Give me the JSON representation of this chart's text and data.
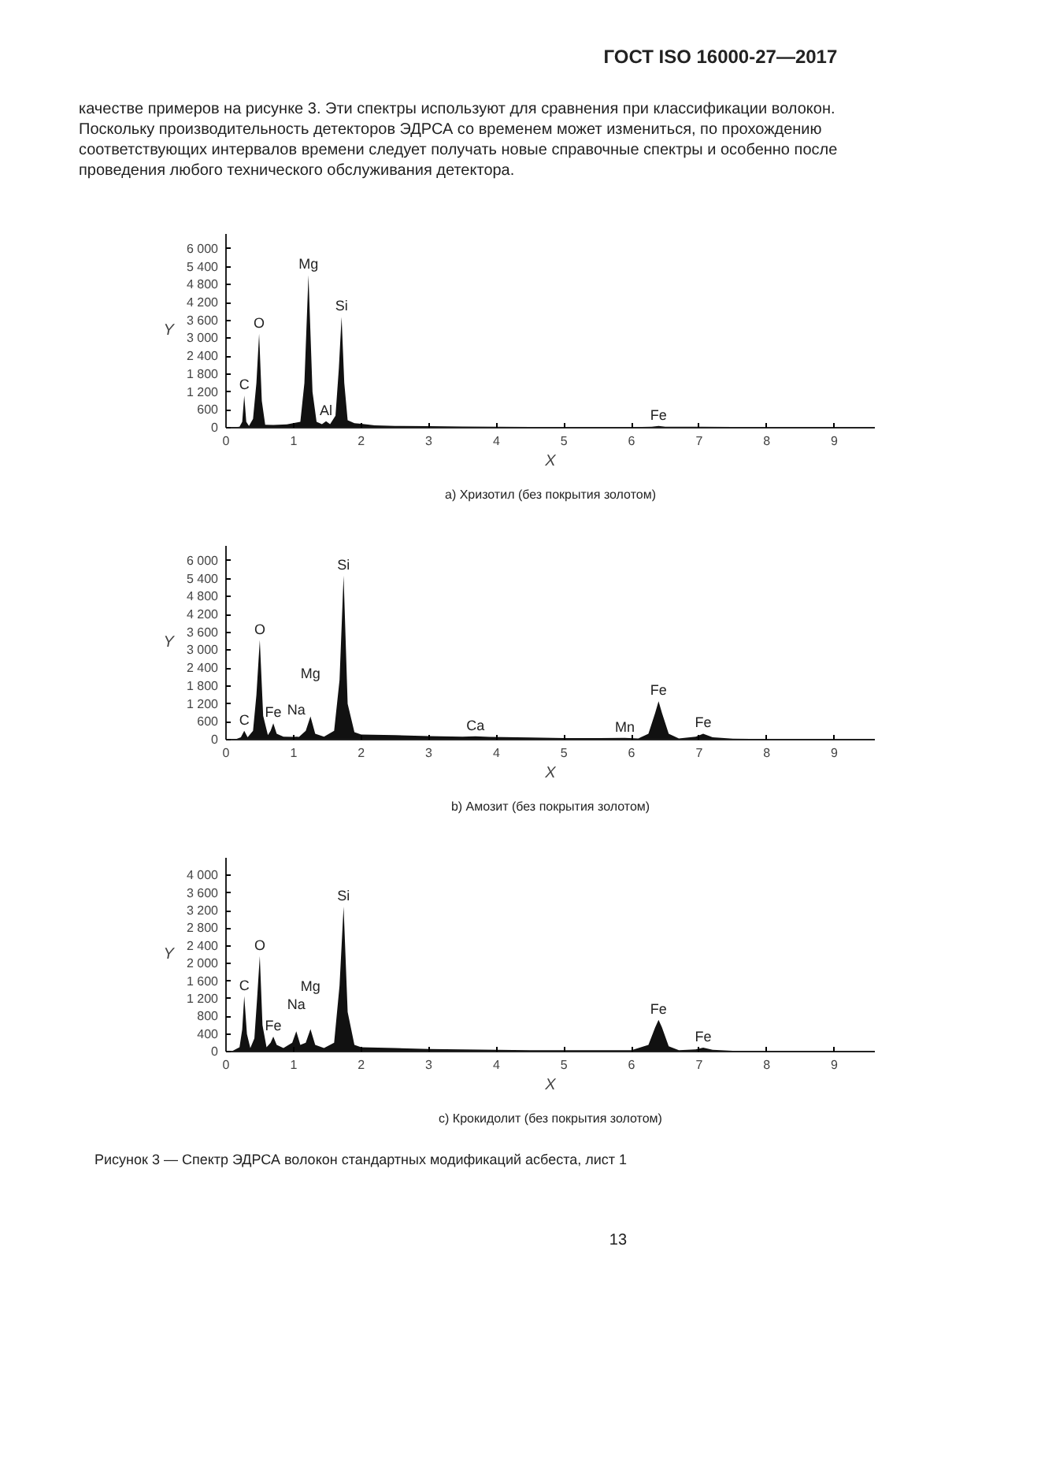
{
  "chart_data": [
    {
      "type": "other",
      "title": "ГОСТ ISO 16000-27—2017",
      "annotations": [
        "качестве примеров на рисунке 3. Эти спектры используют для сравнения при классификации волокон.",
        "Поскольку производительность детекторов ЭДРСА со временем может измениться, по прохождению",
        "соответствующих интервалов времени следует получать новые справочные спектры и особенно после",
        "проведения любого технического обслуживания детектора."
      ]
    },
    {
      "type": "area",
      "title": "a) Хризотил (без покрытия золотом)",
      "xlabel": "X",
      "ylabel": "Y",
      "xlim": [
        0,
        9.6
      ],
      "ylim": [
        0,
        6500
      ],
      "xticks": [
        0,
        1,
        2,
        3,
        4,
        5,
        6,
        7,
        8,
        9
      ],
      "yticks": [
        0,
        600,
        {
          "value": 1200,
          "label": "1 200"
        },
        {
          "value": 1800,
          "label": "1 800"
        },
        {
          "value": 2400,
          "label": "2 400"
        },
        {
          "value": 3000,
          "label": "3 000"
        },
        {
          "value": 3600,
          "label": "3 600"
        },
        {
          "value": 4200,
          "label": "4 200"
        },
        {
          "value": 4800,
          "label": "4 800"
        },
        {
          "value": 5400,
          "label": "5 400"
        },
        {
          "value": 6000,
          "label": "6 000"
        }
      ],
      "grid": false,
      "series": [
        {
          "color": "#111111",
          "x": [
            0,
            0.1,
            0.2,
            0.24,
            0.27,
            0.3,
            0.34,
            0.4,
            0.45,
            0.49,
            0.53,
            0.58,
            0.7,
            0.9,
            1.1,
            1.16,
            1.22,
            1.28,
            1.34,
            1.42,
            1.48,
            1.54,
            1.62,
            1.67,
            1.71,
            1.75,
            1.8,
            1.9,
            2.0,
            2.2,
            2.5,
            3.0,
            3.5,
            4.0,
            5.0,
            6.0,
            6.3,
            6.4,
            6.5,
            7.0,
            8.0,
            9.0,
            9.4
          ],
          "values": [
            0,
            10,
            30,
            200,
            1080,
            200,
            60,
            300,
            1500,
            3150,
            900,
            100,
            90,
            110,
            200,
            1500,
            5120,
            1200,
            200,
            120,
            220,
            120,
            400,
            2000,
            3720,
            1500,
            250,
            150,
            130,
            80,
            60,
            50,
            40,
            30,
            20,
            20,
            30,
            60,
            30,
            30,
            20,
            10,
            0
          ]
        }
      ],
      "annotations": [
        {
          "text": "C",
          "x": 0.27,
          "y": 1080
        },
        {
          "text": "O",
          "x": 0.49,
          "y": 3150
        },
        {
          "text": "Mg",
          "x": 1.22,
          "y": 5120
        },
        {
          "text": "Al",
          "x": 1.48,
          "y": 220
        },
        {
          "text": "Si",
          "x": 1.71,
          "y": 3720
        },
        {
          "text": "Fe",
          "x": 6.4,
          "y": 60
        }
      ]
    },
    {
      "type": "area",
      "title": "b) Амозит (без покрытия золотом)",
      "xlabel": "X",
      "ylabel": "Y",
      "xlim": [
        0,
        9.6
      ],
      "ylim": [
        0,
        6500
      ],
      "xticks": [
        0,
        1,
        2,
        3,
        4,
        5,
        6,
        7,
        8,
        9
      ],
      "yticks": [
        0,
        600,
        {
          "value": 1200,
          "label": "1 200"
        },
        {
          "value": 1800,
          "label": "1 800"
        },
        {
          "value": 2400,
          "label": "2 400"
        },
        {
          "value": 3000,
          "label": "3 000"
        },
        {
          "value": 3600,
          "label": "3 600"
        },
        {
          "value": 4200,
          "label": "4 200"
        },
        {
          "value": 4800,
          "label": "4 800"
        },
        {
          "value": 5400,
          "label": "5 400"
        },
        {
          "value": 6000,
          "label": "6 000"
        }
      ],
      "grid": false,
      "series": [
        {
          "color": "#111111",
          "x": [
            0,
            0.15,
            0.22,
            0.27,
            0.32,
            0.4,
            0.45,
            0.5,
            0.55,
            0.62,
            0.66,
            0.7,
            0.75,
            0.85,
            1.0,
            1.04,
            1.08,
            1.18,
            1.25,
            1.32,
            1.45,
            1.6,
            1.68,
            1.74,
            1.8,
            1.9,
            2.0,
            2.5,
            3.0,
            3.5,
            3.69,
            3.9,
            4.5,
            5.0,
            5.5,
            5.9,
            6.1,
            6.25,
            6.35,
            6.4,
            6.45,
            6.55,
            6.7,
            6.95,
            7.06,
            7.2,
            7.5,
            8.0,
            9.0,
            9.4
          ],
          "values": [
            0,
            20,
            80,
            300,
            80,
            300,
            1500,
            3340,
            800,
            150,
            300,
            550,
            200,
            100,
            90,
            100,
            90,
            300,
            780,
            200,
            100,
            300,
            2000,
            5500,
            1200,
            250,
            170,
            150,
            120,
            100,
            110,
            90,
            70,
            50,
            50,
            60,
            40,
            200,
            900,
            1290,
            900,
            200,
            40,
            100,
            200,
            80,
            30,
            20,
            10,
            0
          ]
        }
      ],
      "annotations": [
        {
          "text": "C",
          "x": 0.27,
          "y": 300
        },
        {
          "text": "O",
          "x": 0.5,
          "y": 3340
        },
        {
          "text": "Fe",
          "x": 0.7,
          "y": 550
        },
        {
          "text": "Na",
          "x": 1.04,
          "y": 100
        },
        {
          "text": "Mg",
          "x": 1.25,
          "y": 780
        },
        {
          "text": "Si",
          "x": 1.74,
          "y": 5500
        },
        {
          "text": "Ca",
          "x": 3.69,
          "y": 110
        },
        {
          "text": "Mn",
          "x": 5.9,
          "y": 60
        },
        {
          "text": "Fe",
          "x": 6.4,
          "y": 1290
        },
        {
          "text": "Fe",
          "x": 7.06,
          "y": 200
        }
      ]
    },
    {
      "type": "area",
      "title": "c) Крокидолит (без покрытия золотом)",
      "xlabel": "X",
      "ylabel": "Y",
      "xlim": [
        0,
        9.6
      ],
      "ylim": [
        0,
        4400
      ],
      "xticks": [
        0,
        1,
        2,
        3,
        4,
        5,
        6,
        7,
        8,
        9
      ],
      "yticks": [
        0,
        400,
        800,
        {
          "value": 1200,
          "label": "1 200"
        },
        {
          "value": 1600,
          "label": "1 600"
        },
        {
          "value": 2000,
          "label": "2 000"
        },
        {
          "value": 2400,
          "label": "2 400"
        },
        {
          "value": 2800,
          "label": "2 800"
        },
        {
          "value": 3200,
          "label": "3 200"
        },
        {
          "value": 3600,
          "label": "3 600"
        },
        {
          "value": 4000,
          "label": "4 000"
        }
      ],
      "grid": false,
      "series": [
        {
          "color": "#111111",
          "x": [
            0,
            0.1,
            0.2,
            0.24,
            0.27,
            0.31,
            0.36,
            0.42,
            0.46,
            0.5,
            0.54,
            0.6,
            0.66,
            0.7,
            0.75,
            0.85,
            0.98,
            1.04,
            1.1,
            1.18,
            1.25,
            1.32,
            1.45,
            1.6,
            1.68,
            1.74,
            1.8,
            1.9,
            2.0,
            2.5,
            3.0,
            3.5,
            4.0,
            4.5,
            5.0,
            5.5,
            6.0,
            6.25,
            6.35,
            6.4,
            6.45,
            6.55,
            6.7,
            6.95,
            7.06,
            7.2,
            7.5,
            8.0,
            9.0,
            9.4
          ],
          "values": [
            0,
            20,
            100,
            500,
            1260,
            400,
            80,
            300,
            1200,
            2170,
            600,
            100,
            200,
            340,
            150,
            80,
            200,
            460,
            150,
            200,
            510,
            150,
            80,
            200,
            1500,
            3290,
            900,
            150,
            100,
            80,
            60,
            50,
            40,
            30,
            30,
            30,
            30,
            150,
            550,
            720,
            550,
            120,
            30,
            50,
            90,
            40,
            20,
            20,
            10,
            0
          ]
        }
      ],
      "annotations": [
        {
          "text": "C",
          "x": 0.27,
          "y": 1260
        },
        {
          "text": "O",
          "x": 0.5,
          "y": 2170
        },
        {
          "text": "Fe",
          "x": 0.7,
          "y": 340
        },
        {
          "text": "Na",
          "x": 1.04,
          "y": 460
        },
        {
          "text": "Mg",
          "x": 1.25,
          "y": 510
        },
        {
          "text": "Si",
          "x": 1.74,
          "y": 3290
        },
        {
          "text": "Fe",
          "x": 6.4,
          "y": 720
        },
        {
          "text": "Fe",
          "x": 7.06,
          "y": 90
        }
      ]
    },
    {
      "type": "other",
      "annotations": [
        "Рисунок 3 — Спектр ЭДРСА волокон стандартных модификаций асбеста, лист 1",
        "13"
      ]
    }
  ]
}
